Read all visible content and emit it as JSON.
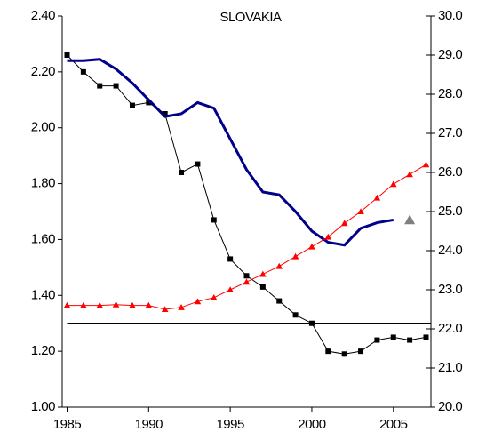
{
  "chart_data": {
    "type": "line",
    "title": "SLOVAKIA",
    "x": [
      1985,
      1986,
      1987,
      1988,
      1989,
      1990,
      1991,
      1992,
      1993,
      1994,
      1995,
      1996,
      1997,
      1998,
      1999,
      2000,
      2001,
      2002,
      2003,
      2004,
      2005,
      2006,
      2007
    ],
    "xlim": [
      1984.7,
      2007.3
    ],
    "xticks": [
      1985,
      1990,
      1995,
      2000,
      2005
    ],
    "ylim": [
      1.0,
      2.4
    ],
    "yticks": [
      {
        "value": 1.0,
        "label": "1.00"
      },
      {
        "value": 1.2,
        "label": "1.20"
      },
      {
        "value": 1.4,
        "label": "1.40"
      },
      {
        "value": 1.6,
        "label": "1.60"
      },
      {
        "value": 1.8,
        "label": "1.80"
      },
      {
        "value": 2.0,
        "label": "2.00"
      },
      {
        "value": 2.2,
        "label": "2.20"
      },
      {
        "value": 2.4,
        "label": "2.40"
      }
    ],
    "y2lim": [
      20,
      30
    ],
    "y2ticks": [
      {
        "value": 20,
        "label": "20.0"
      },
      {
        "value": 21,
        "label": "21.0"
      },
      {
        "value": 22,
        "label": "22.0"
      },
      {
        "value": 23,
        "label": "23.0"
      },
      {
        "value": 24,
        "label": "24.0"
      },
      {
        "value": 25,
        "label": "25.0"
      },
      {
        "value": 26,
        "label": "26.0"
      },
      {
        "value": 27,
        "label": "27.0"
      },
      {
        "value": 28,
        "label": "28.0"
      },
      {
        "value": 29,
        "label": "29.0"
      },
      {
        "value": 30,
        "label": "30.0"
      }
    ],
    "hline": 1.3,
    "series": [
      {
        "color": "#000000",
        "marker": "square",
        "width": 1,
        "values": [
          2.26,
          2.2,
          2.15,
          2.15,
          2.08,
          2.09,
          2.05,
          1.84,
          1.87,
          1.67,
          1.53,
          1.47,
          1.43,
          1.38,
          1.33,
          1.3,
          1.2,
          1.19,
          1.2,
          1.24,
          1.25,
          1.24,
          1.25
        ]
      },
      {
        "color": "#00008b",
        "marker": "none",
        "width": 3,
        "values": [
          2.24,
          2.24,
          2.245,
          2.21,
          2.16,
          2.1,
          2.04,
          2.05,
          2.09,
          2.07,
          1.96,
          1.85,
          1.77,
          1.76,
          1.7,
          1.63,
          1.59,
          1.58,
          1.64,
          1.66,
          1.67,
          null,
          null
        ]
      },
      {
        "color": "#ff0000",
        "marker": "triangle",
        "width": 1,
        "axis": "y2",
        "values": [
          22.6,
          22.6,
          22.6,
          22.62,
          22.6,
          22.6,
          22.5,
          22.55,
          22.7,
          22.8,
          23.0,
          23.2,
          23.4,
          23.6,
          23.85,
          24.1,
          24.35,
          24.7,
          25.0,
          25.35,
          25.7,
          25.95,
          26.2
        ]
      },
      {
        "color": "#808080",
        "marker": "bigtriangle",
        "width": 0,
        "values": [
          null,
          null,
          null,
          null,
          null,
          null,
          null,
          null,
          null,
          null,
          null,
          null,
          null,
          null,
          null,
          null,
          null,
          null,
          null,
          null,
          null,
          1.67,
          null
        ]
      }
    ]
  }
}
